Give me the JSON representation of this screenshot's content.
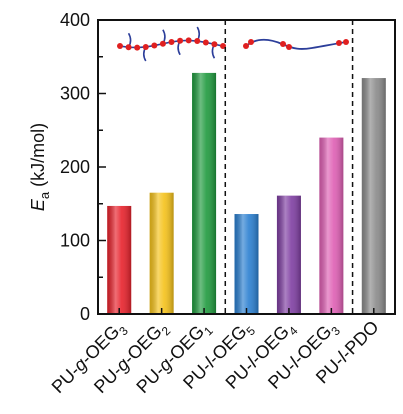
{
  "chart_data": {
    "type": "bar",
    "ylabel": {
      "main": "E",
      "sub": "a",
      "unit": " (kJ/mol)"
    },
    "ylim": [
      0,
      400
    ],
    "yticks": [
      0,
      100,
      200,
      300,
      400
    ],
    "grid": false,
    "categories": [
      {
        "pre": "PU-",
        "mid": "g",
        "post": "-OEG",
        "sub": "3"
      },
      {
        "pre": "PU-",
        "mid": "g",
        "post": "-OEG",
        "sub": "2"
      },
      {
        "pre": "PU-",
        "mid": "g",
        "post": "-OEG",
        "sub": "1"
      },
      {
        "pre": "PU-",
        "mid": "l",
        "post": "-OEG",
        "sub": "5"
      },
      {
        "pre": "PU-",
        "mid": "l",
        "post": "-OEG",
        "sub": "4"
      },
      {
        "pre": "PU-",
        "mid": "l",
        "post": "-OEG",
        "sub": "3"
      },
      {
        "pre": "PU-",
        "mid": "l",
        "post": "-PDO",
        "sub": ""
      }
    ],
    "values": [
      147,
      165,
      328,
      136,
      161,
      240,
      321
    ],
    "colors": [
      "#e8212b",
      "#f5c21a",
      "#1f9a3e",
      "#2a7fd0",
      "#7f3ea2",
      "#df5fb4",
      "#8a8a8a"
    ],
    "group_dividers_after": [
      2,
      5
    ],
    "insets": [
      {
        "type": "graft-chain-icon",
        "group": "graft"
      },
      {
        "type": "linear-chain-icon",
        "group": "linear"
      }
    ]
  }
}
